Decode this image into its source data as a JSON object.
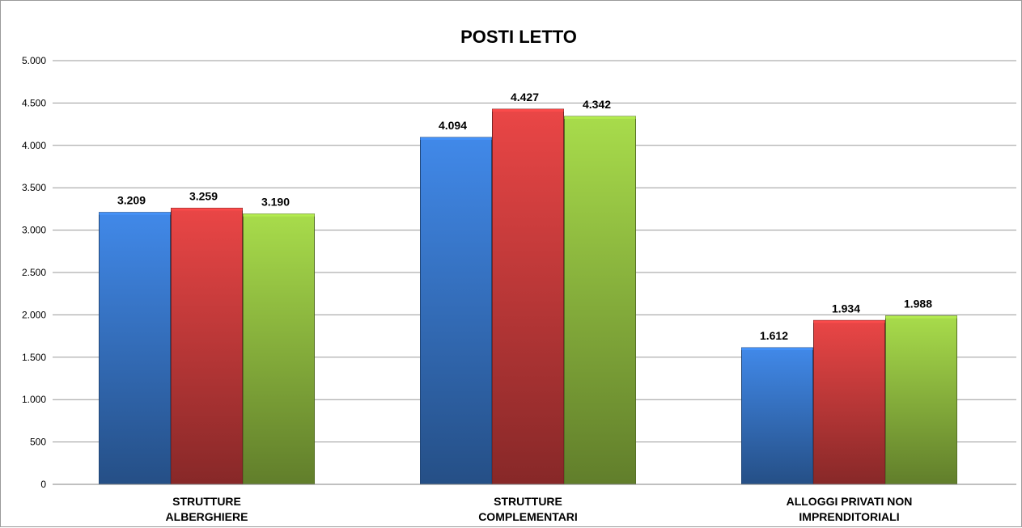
{
  "chart_data": {
    "type": "bar",
    "title": "POSTI LETTO",
    "xlabel": "",
    "ylabel": "",
    "ylim": [
      0,
      5000
    ],
    "yticks": [
      0,
      500,
      1000,
      1500,
      2000,
      2500,
      3000,
      3500,
      4000,
      4500,
      5000
    ],
    "ytick_labels": [
      "0",
      "500",
      "1.000",
      "1.500",
      "2.000",
      "2.500",
      "3.000",
      "3.500",
      "4.000",
      "4.500",
      "5.000"
    ],
    "categories": [
      [
        "STRUTTURE",
        "ALBERGHIERE"
      ],
      [
        "STRUTTURE",
        "COMPLEMENTARI"
      ],
      [
        "ALLOGGI PRIVATI NON",
        "IMPRENDITORIALI"
      ]
    ],
    "series": [
      {
        "color": "#3c7fd8",
        "values": [
          3209,
          4094,
          1612
        ],
        "labels": [
          "3.209",
          "4.094",
          "1.612"
        ]
      },
      {
        "color": "#d94141",
        "values": [
          3259,
          4427,
          1934
        ],
        "labels": [
          "3.259",
          "4.427",
          "1.934"
        ]
      },
      {
        "color": "#9ccc45",
        "values": [
          3190,
          4342,
          1988
        ],
        "labels": [
          "3.190",
          "4.342",
          "1.988"
        ]
      }
    ],
    "grid": true,
    "legend": "none"
  }
}
